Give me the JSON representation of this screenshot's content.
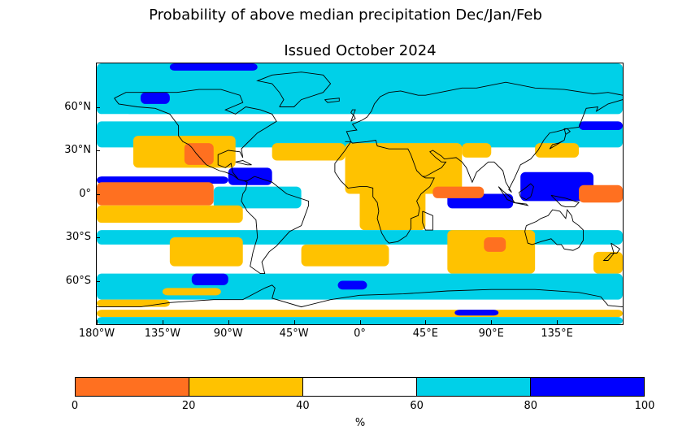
{
  "figure": {
    "suptitle": "Probability of above median precipitation Dec/Jan/Feb",
    "subtitle": "Issued October 2024"
  },
  "map": {
    "projection": "equirectangular",
    "extent": {
      "lon": [
        -180,
        180
      ],
      "lat": [
        -90,
        90
      ]
    },
    "lat_ticks": [
      {
        "value": 60,
        "label": "60°N"
      },
      {
        "value": 30,
        "label": "30°N"
      },
      {
        "value": 0,
        "label": "0°"
      },
      {
        "value": -30,
        "label": "30°S"
      },
      {
        "value": -60,
        "label": "60°S"
      }
    ],
    "lon_ticks": [
      {
        "value": -180,
        "label": "180°W"
      },
      {
        "value": -135,
        "label": "135°W"
      },
      {
        "value": -90,
        "label": "90°W"
      },
      {
        "value": -45,
        "label": "45°W"
      },
      {
        "value": 0,
        "label": "0°"
      },
      {
        "value": 45,
        "label": "45°E"
      },
      {
        "value": 90,
        "label": "90°E"
      },
      {
        "value": 135,
        "label": "135°E"
      }
    ]
  },
  "colorbar": {
    "unit": "%",
    "ticks": [
      "0",
      "20",
      "40",
      "60",
      "80",
      "100"
    ],
    "bins": [
      {
        "range": [
          0,
          20
        ],
        "color": "#ff7020"
      },
      {
        "range": [
          20,
          40
        ],
        "color": "#ffc200"
      },
      {
        "range": [
          40,
          60
        ],
        "color": "#ffffff"
      },
      {
        "range": [
          60,
          80
        ],
        "color": "#00d0e8"
      },
      {
        "range": [
          80,
          100
        ],
        "color": "#0000ff"
      }
    ]
  },
  "regions": [
    {
      "bin": 3,
      "lon": -180,
      "lat": 90,
      "w": 360,
      "h": 35
    },
    {
      "bin": 4,
      "lon": -130,
      "lat": 90,
      "w": 60,
      "h": 5
    },
    {
      "bin": 2,
      "lon": -180,
      "lat": 55,
      "w": 25,
      "h": 5
    },
    {
      "bin": 3,
      "lon": -180,
      "lat": 50,
      "w": 360,
      "h": 18
    },
    {
      "bin": 4,
      "lon": -150,
      "lat": 70,
      "w": 20,
      "h": 8
    },
    {
      "bin": 4,
      "lon": 150,
      "lat": 50,
      "w": 30,
      "h": 6
    },
    {
      "bin": 1,
      "lon": -155,
      "lat": 40,
      "w": 70,
      "h": 22
    },
    {
      "bin": 0,
      "lon": -120,
      "lat": 35,
      "w": 20,
      "h": 15
    },
    {
      "bin": 1,
      "lon": -60,
      "lat": 35,
      "w": 50,
      "h": 12
    },
    {
      "bin": 1,
      "lon": -10,
      "lat": 35,
      "w": 80,
      "h": 35
    },
    {
      "bin": 1,
      "lon": 70,
      "lat": 35,
      "w": 20,
      "h": 10
    },
    {
      "bin": 1,
      "lon": 120,
      "lat": 35,
      "w": 30,
      "h": 10
    },
    {
      "bin": 4,
      "lon": -180,
      "lat": 12,
      "w": 90,
      "h": 5
    },
    {
      "bin": 4,
      "lon": -90,
      "lat": 18,
      "w": 30,
      "h": 12
    },
    {
      "bin": 4,
      "lon": 110,
      "lat": 15,
      "w": 50,
      "h": 20
    },
    {
      "bin": 4,
      "lon": 60,
      "lat": 0,
      "w": 45,
      "h": 10
    },
    {
      "bin": 3,
      "lon": -100,
      "lat": 5,
      "w": 60,
      "h": 15
    },
    {
      "bin": 0,
      "lon": -180,
      "lat": 8,
      "w": 80,
      "h": 16
    },
    {
      "bin": 1,
      "lon": -180,
      "lat": -8,
      "w": 100,
      "h": 12
    },
    {
      "bin": 0,
      "lon": 50,
      "lat": 5,
      "w": 35,
      "h": 8
    },
    {
      "bin": 0,
      "lon": 150,
      "lat": 6,
      "w": 30,
      "h": 12
    },
    {
      "bin": 1,
      "lon": 0,
      "lat": 5,
      "w": 45,
      "h": 30
    },
    {
      "bin": 3,
      "lon": -180,
      "lat": -25,
      "w": 360,
      "h": 10
    },
    {
      "bin": 1,
      "lon": -130,
      "lat": -30,
      "w": 50,
      "h": 20
    },
    {
      "bin": 1,
      "lon": -40,
      "lat": -35,
      "w": 60,
      "h": 15
    },
    {
      "bin": 1,
      "lon": 60,
      "lat": -25,
      "w": 60,
      "h": 30
    },
    {
      "bin": 0,
      "lon": 85,
      "lat": -30,
      "w": 15,
      "h": 10
    },
    {
      "bin": 1,
      "lon": 160,
      "lat": -40,
      "w": 20,
      "h": 15
    },
    {
      "bin": 3,
      "lon": -180,
      "lat": -55,
      "w": 360,
      "h": 18
    },
    {
      "bin": 4,
      "lon": -115,
      "lat": -55,
      "w": 25,
      "h": 8
    },
    {
      "bin": 4,
      "lon": -15,
      "lat": -60,
      "w": 20,
      "h": 6
    },
    {
      "bin": 1,
      "lon": -180,
      "lat": -73,
      "w": 50,
      "h": 5
    },
    {
      "bin": 1,
      "lon": -180,
      "lat": -80,
      "w": 360,
      "h": 5
    },
    {
      "bin": 3,
      "lon": -180,
      "lat": -85,
      "w": 360,
      "h": 5
    },
    {
      "bin": 4,
      "lon": 65,
      "lat": -80,
      "w": 30,
      "h": 4
    },
    {
      "bin": 1,
      "lon": -135,
      "lat": -65,
      "w": 40,
      "h": 5
    }
  ],
  "coastlines": [
    "-168,66 -160,70 -140,70 -125,70 -110,72 -95,72 -82,68 -80,63 -92,58 -85,55 -78,60 -68,58 -60,55 -57,50 -65,45 -70,42 -75,37 -81,31 -80,25 -82,29 -90,30 -97,27 -97,20 -92,18 -88,21 -87,15 -83,10 -79,9 -77,8 -78,3 -80,0 -81,-5 -77,-12 -71,-18 -70,-30 -73,-40 -75,-50 -68,-55 -65,-55 -67,-47 -62,-40 -57,-36 -48,-26 -40,-22 -35,-8 -35,-5 -50,0 -60,8 -72,12 -77,9 -79,9 -83,10 -87,13 -92,15 -96,16 -105,20 -112,28 -115,32 -117,34 -121,36 -124,40 -124,47 -130,55 -140,59 -152,60 -165,62 -168,66",
    "-55,60 -45,60 -40,65 -25,70 -20,76 -25,82 -40,84 -60,82 -70,78 -60,76 -55,70 -52,65 -55,60",
    "-10,36 -6,36 -9,43 -2,44 -5,48 2,51 5,53 8,57 10,62 14,67 20,70 28,71 40,68 45,68 55,70 70,73 80,73 100,77 120,73 140,72 160,69 170,70 180,68",
    "180,65 170,62 162,57 163,60 155,59 150,46 142,45 135,43 130,42 126,37 122,30 117,24 110,20 106,11 102,3 104,1 100,8 98,16 92,22 88,22 80,15 77,8 73,18 70,22 66,25 58,24 56,26 50,30 48,29 52,25 56,22 59,22 56,18 52,16 45,12 43,12 39,16 35,27 33,31 30,31 20,31 12,33 11,37 5,36 -5,35 -6,36",
    "-6,36 -10,30 -17,21 -17,15 -13,9 -8,4 0,5 5,5 9,4 9,-2 12,-6 13,-12 12,-17 15,-27 18,-32 20,-34 26,-33 32,-29 35,-24 35,-17 40,-15 41,-10 39,-5 42,0 48,5 51,11 45,11 43,12",
    "114,-22 113,-26 115,-34 118,-35 124,-33 131,-31 135,-35 138,-35 140,-38 146,-39 150,-37 153,-32 153,-25 150,-22 146,-19 145,-15 142,-11 141,-17 137,-12 132,-11 129,-15 124,-17 121,-19 114,-22",
    "-180,-78 -150,-78 -130,-75 -100,-73 -80,-73 -65,-65 -60,-63 -58,-65 -60,-72 -40,-78 -20,-73 0,-70 30,-69 60,-67 90,-66 120,-66 150,-68 165,-71 170,-77 180,-78",
    "-6,50 -3,58 -5,58 -6,56 -4,54 -3,52 -6,50",
    "130,31 132,34 136,35 140,37 141,41 140,45 142,45 144,43 141,41 140,37 135,34 130,31",
    "95,5 98,2 104,-3 106,-6 101,-4 95,5",
    "105,-6 115,-8 114,-7 105,-6",
    "109,1 112,3 117,7 119,5 118,1 117,-2 114,-4 110,-2 109,1",
    "131,-1 141,-3 150,-6 147,-9 141,-9 138,-8 131,-1",
    "172,-34 178,-38 176,-41 172,-41 167,-46 170,-46 174,-41 172,-34",
    "43,-12 50,-15 50,-25 45,-25 43,-20 43,-12",
    "-85,22 -80,23 -74,20 -77,20 -85,22",
    "-24,65 -14,66 -14,64 -22,63 -24,65"
  ]
}
